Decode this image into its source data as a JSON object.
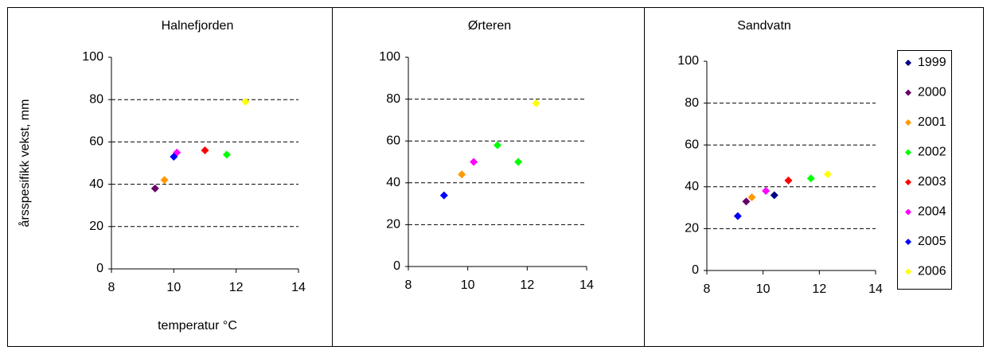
{
  "chart_data": [
    {
      "type": "scatter",
      "title": "Halnefjorden",
      "ylabel": "årsspesifikk vekst, mm",
      "xlabel": "temperatur °C",
      "xlim": [
        8,
        14
      ],
      "xticks": [
        8,
        10,
        12,
        14
      ],
      "ylim": [
        0,
        100
      ],
      "yticks": [
        0,
        20,
        40,
        60,
        80,
        100
      ],
      "grid": true,
      "series": [
        {
          "color": "#660066",
          "x": [
            9.4
          ],
          "values": [
            38
          ]
        },
        {
          "color": "#ff9900",
          "x": [
            9.7
          ],
          "values": [
            42
          ]
        },
        {
          "color": "#00ff00",
          "x": [
            11.7
          ],
          "values": [
            54
          ]
        },
        {
          "color": "#ff0000",
          "x": [
            11.0
          ],
          "values": [
            56
          ]
        },
        {
          "color": "#ff00ff",
          "x": [
            10.1
          ],
          "values": [
            55
          ]
        },
        {
          "color": "#0000ff",
          "x": [
            10.0
          ],
          "values": [
            53
          ]
        },
        {
          "color": "#ffff00",
          "x": [
            12.3
          ],
          "values": [
            79
          ]
        }
      ]
    },
    {
      "type": "scatter",
      "title": "Ørteren",
      "xlim": [
        8,
        14
      ],
      "xticks": [
        8,
        10,
        12,
        14
      ],
      "ylim": [
        0,
        100
      ],
      "yticks": [
        0,
        20,
        40,
        60,
        80,
        100
      ],
      "grid": true,
      "series": [
        {
          "color": "#ff9900",
          "x": [
            9.8
          ],
          "values": [
            44
          ]
        },
        {
          "color": "#00ff00",
          "x": [
            11.0,
            11.7
          ],
          "values": [
            58,
            50
          ]
        },
        {
          "color": "#ff00ff",
          "x": [
            10.2
          ],
          "values": [
            50
          ]
        },
        {
          "color": "#0000ff",
          "x": [
            9.2
          ],
          "values": [
            34
          ]
        },
        {
          "color": "#ffff00",
          "x": [
            12.3
          ],
          "values": [
            78
          ]
        }
      ]
    },
    {
      "type": "scatter",
      "title": "Sandvatn",
      "xlim": [
        8,
        14
      ],
      "xticks": [
        8,
        10,
        12,
        14
      ],
      "ylim": [
        0,
        100
      ],
      "yticks": [
        0,
        20,
        40,
        60,
        80,
        100
      ],
      "grid": true,
      "legend": "right",
      "series": [
        {
          "name": "1999",
          "color": "#000080",
          "x": [
            10.4
          ],
          "values": [
            36
          ]
        },
        {
          "name": "2000",
          "color": "#660066",
          "x": [
            9.4
          ],
          "values": [
            33
          ]
        },
        {
          "name": "2001",
          "color": "#ff9900",
          "x": [
            9.6
          ],
          "values": [
            35
          ]
        },
        {
          "name": "2002",
          "color": "#00ff00",
          "x": [
            11.7
          ],
          "values": [
            44
          ]
        },
        {
          "name": "2003",
          "color": "#ff0000",
          "x": [
            10.9
          ],
          "values": [
            43
          ]
        },
        {
          "name": "2004",
          "color": "#ff00ff",
          "x": [
            10.1
          ],
          "values": [
            38
          ]
        },
        {
          "name": "2005",
          "color": "#0000ff",
          "x": [
            9.1
          ],
          "values": [
            26
          ]
        },
        {
          "name": "2006",
          "color": "#ffff00",
          "x": [
            12.3
          ],
          "values": [
            46
          ]
        }
      ]
    }
  ]
}
